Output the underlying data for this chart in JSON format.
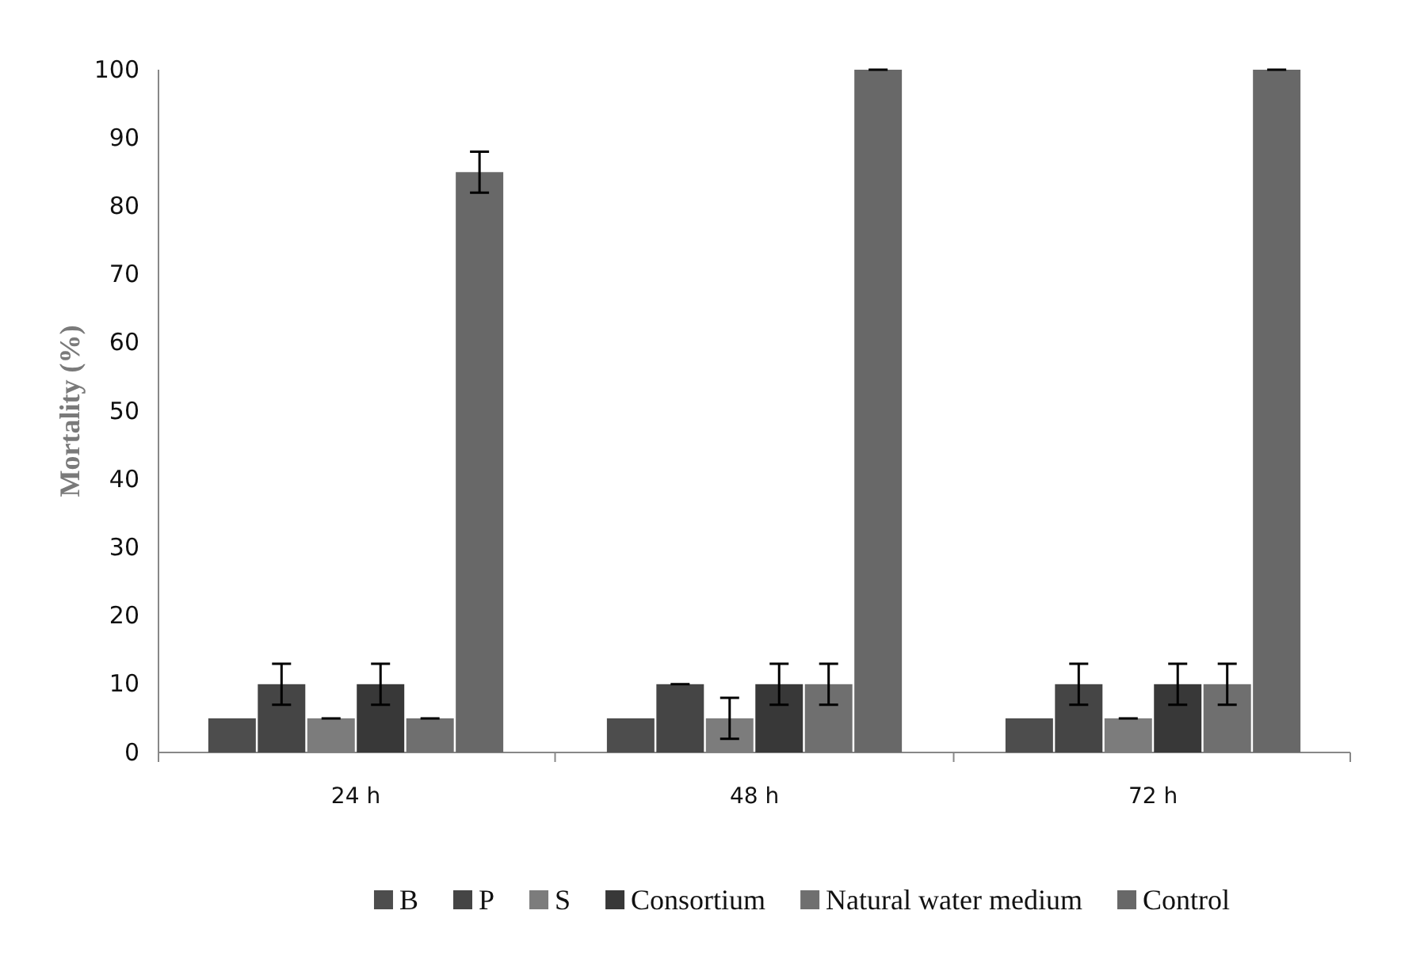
{
  "chart_data": {
    "type": "bar",
    "ylabel": "Mortality (%)",
    "categories": [
      "24 h",
      "48 h",
      "72 h"
    ],
    "series": [
      {
        "name": "B",
        "color": "#4d4d4d",
        "values": [
          5,
          5,
          5
        ],
        "errors": [
          null,
          null,
          null
        ]
      },
      {
        "name": "P",
        "color": "#454545",
        "values": [
          10,
          10,
          10
        ],
        "errors": [
          3,
          0,
          3
        ]
      },
      {
        "name": "S",
        "color": "#7c7c7c",
        "values": [
          5,
          5,
          5
        ],
        "errors": [
          0,
          3,
          0
        ]
      },
      {
        "name": "Consortium",
        "color": "#383838",
        "values": [
          10,
          10,
          10
        ],
        "errors": [
          3,
          3,
          3
        ]
      },
      {
        "name": "Natural water medium",
        "color": "#6f6f6f",
        "values": [
          5,
          10,
          10
        ],
        "errors": [
          0,
          3,
          3
        ]
      },
      {
        "name": "Control",
        "color": "#686868",
        "values": [
          85,
          100,
          100
        ],
        "errors": [
          3,
          0,
          0
        ]
      }
    ],
    "ylim": [
      0,
      100
    ],
    "yticks": [
      0,
      10,
      20,
      30,
      40,
      50,
      60,
      70,
      80,
      90,
      100
    ],
    "grid": false,
    "legend": "bottom"
  }
}
